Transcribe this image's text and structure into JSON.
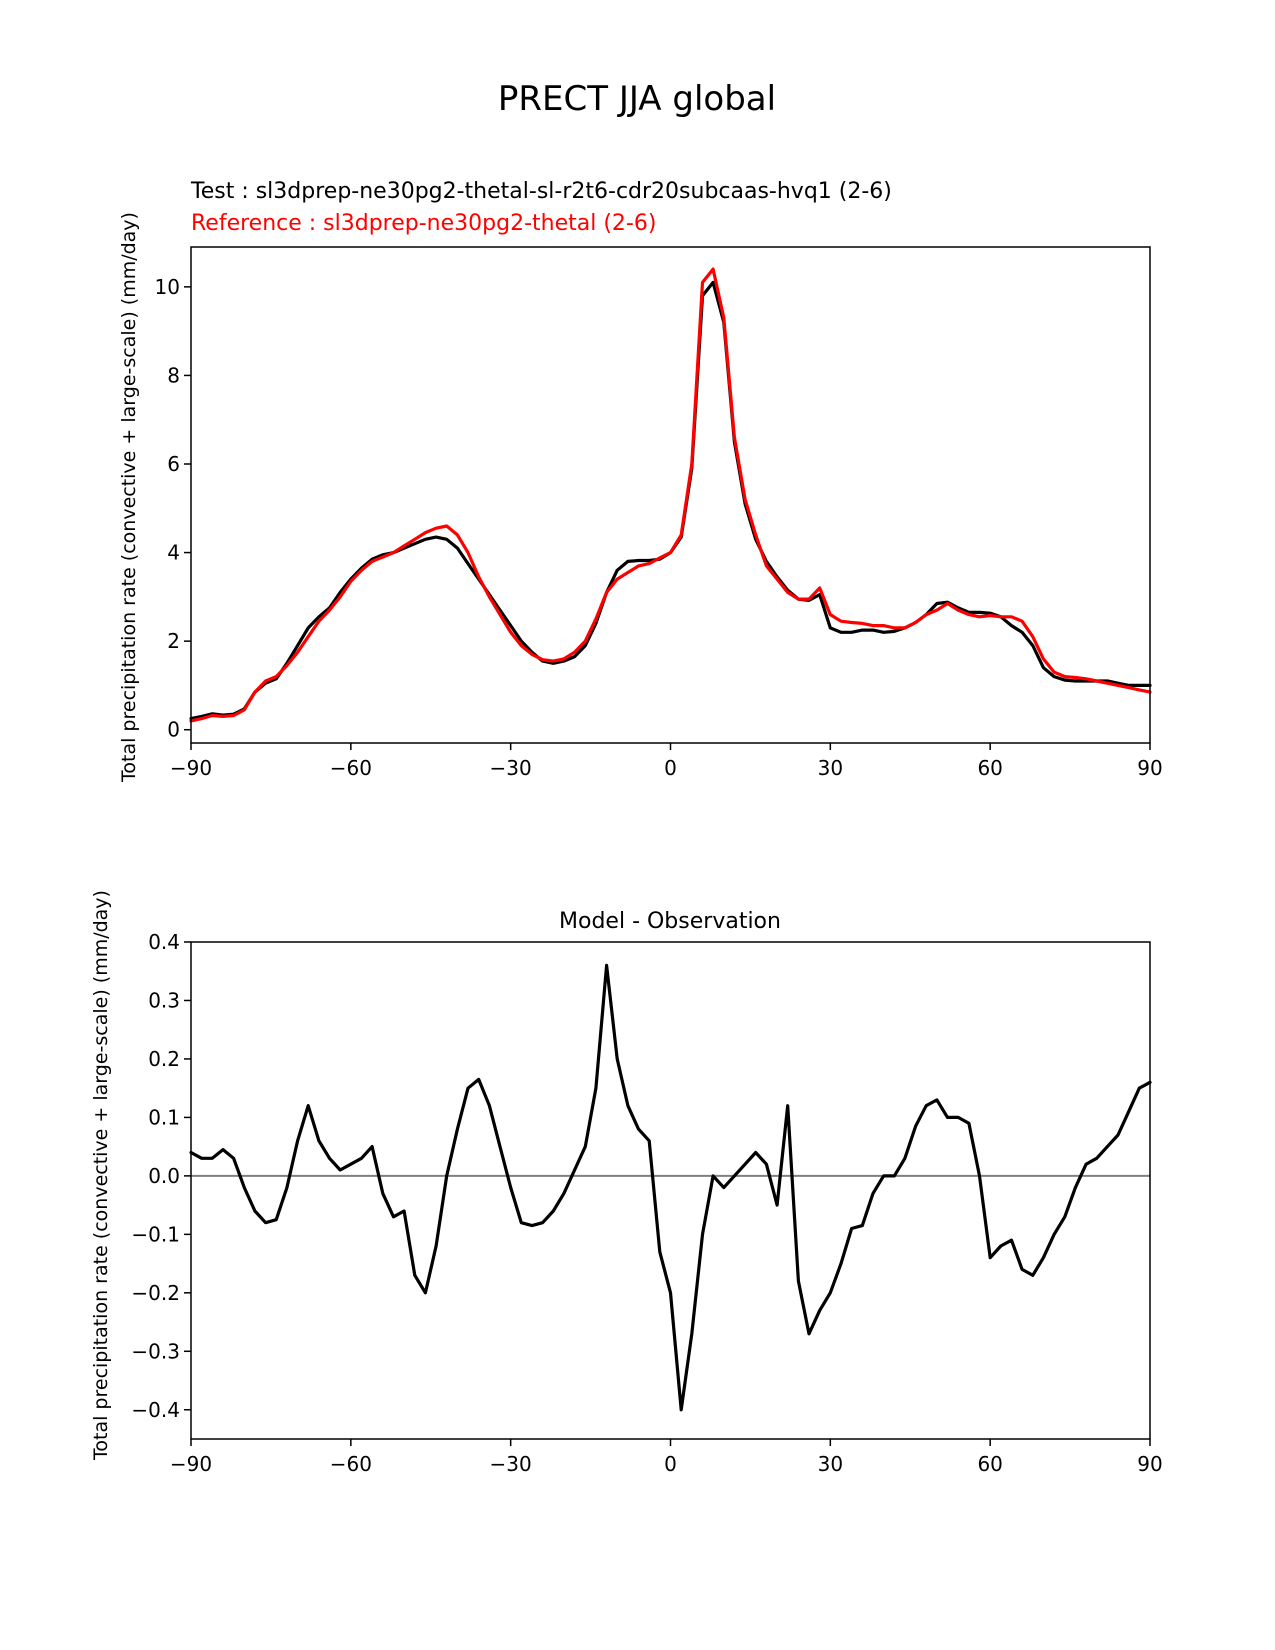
{
  "figure": {
    "title": "PRECT JJA global"
  },
  "chart_data": [
    {
      "type": "line",
      "test_label": "Test : sl3dprep-ne30pg2-thetal-sl-r2t6-cdr20subcaas-hvq1 (2-6)",
      "reference_label": "Reference : sl3dprep-ne30pg2-thetal (2-6)",
      "xlabel": "",
      "ylabel": "Total precipitation rate (convective + large-scale) (mm/day)",
      "xlim": [
        -90,
        90
      ],
      "ylim": [
        -0.3,
        10.9
      ],
      "xticks": [
        -90,
        -60,
        -30,
        0,
        30,
        60,
        90
      ],
      "xtick_labels": [
        "−90",
        "−60",
        "−30",
        "0",
        "30",
        "60",
        "90"
      ],
      "yticks": [
        0,
        2,
        4,
        6,
        8,
        10
      ],
      "ytick_labels": [
        "0",
        "2",
        "4",
        "6",
        "8",
        "10"
      ],
      "series": [
        {
          "name": "Test",
          "color": "#000000",
          "x": [
            -90,
            -88,
            -86,
            -84,
            -82,
            -80,
            -78,
            -76,
            -74,
            -72,
            -70,
            -68,
            -66,
            -64,
            -62,
            -60,
            -58,
            -56,
            -54,
            -52,
            -50,
            -48,
            -46,
            -44,
            -42,
            -40,
            -38,
            -36,
            -34,
            -32,
            -30,
            -28,
            -26,
            -24,
            -22,
            -20,
            -18,
            -16,
            -14,
            -12,
            -10,
            -8,
            -6,
            -4,
            -2,
            0,
            2,
            4,
            6,
            8,
            10,
            12,
            14,
            16,
            18,
            20,
            22,
            24,
            26,
            28,
            30,
            32,
            34,
            36,
            38,
            40,
            42,
            44,
            46,
            48,
            50,
            52,
            54,
            56,
            58,
            60,
            62,
            64,
            66,
            68,
            70,
            72,
            74,
            76,
            78,
            80,
            82,
            84,
            86,
            88,
            90
          ],
          "y": [
            0.25,
            0.3,
            0.36,
            0.33,
            0.35,
            0.47,
            0.85,
            1.05,
            1.15,
            1.5,
            1.9,
            2.3,
            2.55,
            2.75,
            3.1,
            3.4,
            3.65,
            3.85,
            3.95,
            4.0,
            4.1,
            4.2,
            4.3,
            4.35,
            4.3,
            4.1,
            3.75,
            3.4,
            3.05,
            2.7,
            2.35,
            2.0,
            1.75,
            1.55,
            1.5,
            1.55,
            1.65,
            1.9,
            2.4,
            3.1,
            3.6,
            3.8,
            3.82,
            3.82,
            3.85,
            4.0,
            4.35,
            5.9,
            9.8,
            10.1,
            9.2,
            6.5,
            5.1,
            4.3,
            3.8,
            3.45,
            3.15,
            2.95,
            2.92,
            3.05,
            2.3,
            2.2,
            2.2,
            2.25,
            2.25,
            2.2,
            2.22,
            2.3,
            2.42,
            2.6,
            2.85,
            2.88,
            2.75,
            2.65,
            2.65,
            2.63,
            2.55,
            2.35,
            2.2,
            1.9,
            1.4,
            1.2,
            1.12,
            1.1,
            1.1,
            1.1,
            1.1,
            1.05,
            1.0,
            1.0,
            1.0
          ]
        },
        {
          "name": "Reference",
          "color": "#ff0000",
          "x": [
            -90,
            -88,
            -86,
            -84,
            -82,
            -80,
            -78,
            -76,
            -74,
            -72,
            -70,
            -68,
            -66,
            -64,
            -62,
            -60,
            -58,
            -56,
            -54,
            -52,
            -50,
            -48,
            -46,
            -44,
            -42,
            -40,
            -38,
            -36,
            -34,
            -32,
            -30,
            -28,
            -26,
            -24,
            -22,
            -20,
            -18,
            -16,
            -14,
            -12,
            -10,
            -8,
            -6,
            -4,
            -2,
            0,
            2,
            4,
            6,
            8,
            10,
            12,
            14,
            16,
            18,
            20,
            22,
            24,
            26,
            28,
            30,
            32,
            34,
            36,
            38,
            40,
            42,
            44,
            46,
            48,
            50,
            52,
            54,
            56,
            58,
            60,
            62,
            64,
            66,
            68,
            70,
            72,
            74,
            76,
            78,
            80,
            82,
            84,
            86,
            88,
            90
          ],
          "y": [
            0.2,
            0.25,
            0.32,
            0.3,
            0.32,
            0.45,
            0.85,
            1.1,
            1.2,
            1.45,
            1.75,
            2.1,
            2.45,
            2.7,
            3.0,
            3.35,
            3.6,
            3.8,
            3.9,
            4.0,
            4.15,
            4.3,
            4.45,
            4.55,
            4.6,
            4.4,
            4.0,
            3.45,
            3.0,
            2.6,
            2.2,
            1.9,
            1.7,
            1.58,
            1.55,
            1.6,
            1.75,
            2.0,
            2.5,
            3.1,
            3.4,
            3.55,
            3.7,
            3.75,
            3.88,
            4.0,
            4.4,
            6.0,
            10.1,
            10.4,
            9.3,
            6.6,
            5.2,
            4.4,
            3.7,
            3.4,
            3.1,
            2.95,
            2.95,
            3.2,
            2.6,
            2.45,
            2.42,
            2.4,
            2.35,
            2.35,
            2.3,
            2.3,
            2.42,
            2.6,
            2.7,
            2.85,
            2.7,
            2.6,
            2.55,
            2.58,
            2.55,
            2.55,
            2.45,
            2.1,
            1.6,
            1.3,
            1.2,
            1.18,
            1.15,
            1.1,
            1.05,
            1.0,
            0.95,
            0.9,
            0.85
          ]
        }
      ]
    },
    {
      "type": "line",
      "title": "Model - Observation",
      "xlabel": "",
      "ylabel": "Total precipitation rate (convective + large-scale) (mm/day)",
      "xlim": [
        -90,
        90
      ],
      "ylim": [
        -0.45,
        0.4
      ],
      "xticks": [
        -90,
        -60,
        -30,
        0,
        30,
        60,
        90
      ],
      "xtick_labels": [
        "−90",
        "−60",
        "−30",
        "0",
        "30",
        "60",
        "90"
      ],
      "yticks": [
        0.4,
        0.3,
        0.2,
        0.1,
        0.0,
        -0.1,
        -0.2,
        -0.3,
        -0.4
      ],
      "ytick_labels": [
        "0.4",
        "0.3",
        "0.2",
        "0.1",
        "0.0",
        "−0.1",
        "−0.2",
        "−0.3",
        "−0.4"
      ],
      "zero_line_color": "#808080",
      "series": [
        {
          "name": "Difference",
          "color": "#000000",
          "x": [
            -90,
            -88,
            -86,
            -84,
            -82,
            -80,
            -78,
            -76,
            -74,
            -72,
            -70,
            -68,
            -66,
            -64,
            -62,
            -60,
            -58,
            -56,
            -54,
            -52,
            -50,
            -48,
            -46,
            -44,
            -42,
            -40,
            -38,
            -36,
            -34,
            -32,
            -30,
            -28,
            -26,
            -24,
            -22,
            -20,
            -18,
            -16,
            -14,
            -12,
            -10,
            -8,
            -6,
            -4,
            -2,
            0,
            2,
            4,
            6,
            8,
            10,
            12,
            14,
            16,
            18,
            20,
            22,
            24,
            26,
            28,
            30,
            32,
            34,
            36,
            38,
            40,
            42,
            44,
            46,
            48,
            50,
            52,
            54,
            56,
            58,
            60,
            62,
            64,
            66,
            68,
            70,
            72,
            74,
            76,
            78,
            80,
            82,
            84,
            86,
            88,
            90
          ],
          "y": [
            0.04,
            0.03,
            0.03,
            0.045,
            0.03,
            -0.02,
            -0.06,
            -0.08,
            -0.075,
            -0.02,
            0.06,
            0.12,
            0.06,
            0.03,
            0.01,
            0.02,
            0.03,
            0.05,
            -0.03,
            -0.07,
            -0.06,
            -0.17,
            -0.2,
            -0.12,
            0.0,
            0.08,
            0.15,
            0.165,
            0.12,
            0.05,
            -0.02,
            -0.08,
            -0.085,
            -0.08,
            -0.06,
            -0.03,
            0.01,
            0.05,
            0.15,
            0.36,
            0.2,
            0.12,
            0.08,
            0.06,
            -0.13,
            -0.2,
            -0.4,
            -0.27,
            -0.1,
            0.0,
            -0.02,
            0.0,
            0.02,
            0.04,
            0.02,
            -0.05,
            0.12,
            -0.18,
            -0.27,
            -0.23,
            -0.2,
            -0.15,
            -0.09,
            -0.085,
            -0.03,
            0.0,
            0.0,
            0.03,
            0.085,
            0.12,
            0.13,
            0.1,
            0.1,
            0.09,
            0.0,
            -0.14,
            -0.12,
            -0.11,
            -0.16,
            -0.17,
            -0.14,
            -0.1,
            -0.07,
            -0.02,
            0.02,
            0.03,
            0.05,
            0.07,
            0.11,
            0.15,
            0.16
          ]
        }
      ]
    }
  ]
}
